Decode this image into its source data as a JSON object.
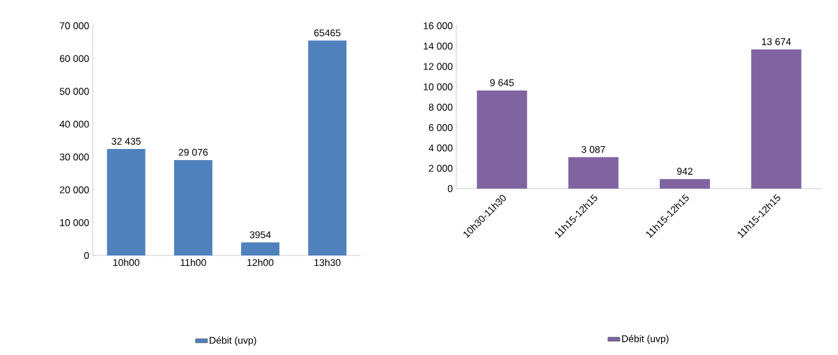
{
  "chart_data": [
    {
      "type": "bar",
      "categories": [
        "10h00",
        "11h00",
        "12h00",
        "13h30"
      ],
      "ylim": [
        0,
        70000
      ],
      "yticks": [
        0,
        {
          "value": 10000,
          "label": "10 000"
        },
        {
          "value": 20000,
          "label": "20 000"
        },
        {
          "value": 30000,
          "label": "30 000"
        },
        {
          "value": 40000,
          "label": "40 000"
        },
        {
          "value": 50000,
          "label": "50 000"
        },
        {
          "value": 60000,
          "label": "60 000"
        },
        {
          "value": 70000,
          "label": "70 000"
        }
      ],
      "legend": "bottom",
      "series": [
        {
          "name": "Débit (uvp)",
          "color": "#4f81bd",
          "values": [
            32435,
            29076,
            3954,
            65465
          ],
          "value_labels": [
            "32 435",
            "29 076",
            "3954",
            "65465"
          ]
        }
      ]
    },
    {
      "type": "bar",
      "categories": [
        "10h30-11h30",
        "11h15-12h15",
        "11h15-12h15",
        "11h15-12h15"
      ],
      "ylim": [
        0,
        16000
      ],
      "yticks": [
        0,
        {
          "value": 2000,
          "label": "2 000"
        },
        {
          "value": 4000,
          "label": "4 000"
        },
        {
          "value": 6000,
          "label": "6 000"
        },
        {
          "value": 8000,
          "label": "8 000"
        },
        {
          "value": 10000,
          "label": "10 000"
        },
        {
          "value": 12000,
          "label": "12 000"
        },
        {
          "value": 14000,
          "label": "14 000"
        },
        {
          "value": 16000,
          "label": "16 000"
        }
      ],
      "legend": "bottom",
      "series": [
        {
          "name": "Débit (uvp)",
          "color": "#8064a2",
          "values": [
            9645,
            3087,
            942,
            13674
          ],
          "value_labels": [
            "9 645",
            "3 087",
            "942",
            "13 674"
          ]
        }
      ]
    }
  ]
}
